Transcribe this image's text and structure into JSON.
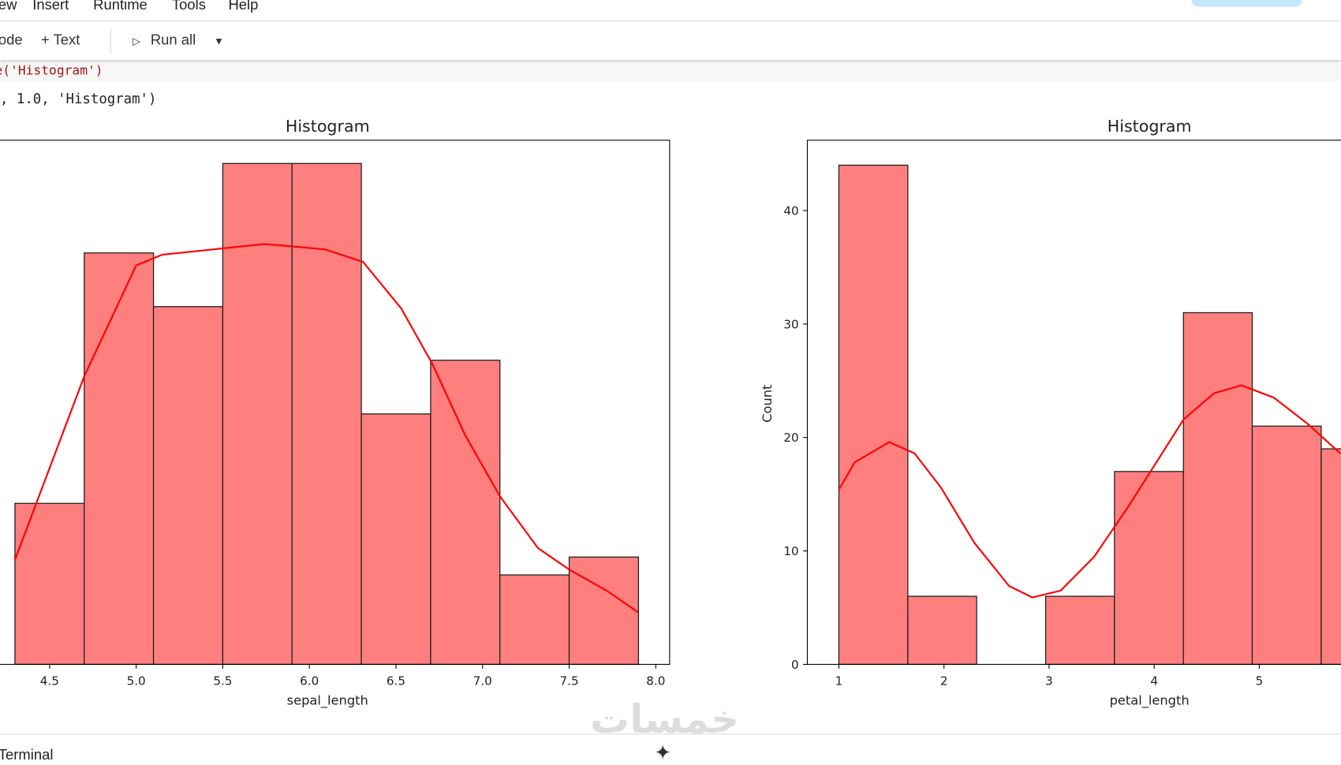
{
  "menu": {
    "items": [
      "ew",
      "Insert",
      "Runtime",
      "Tools",
      "Help"
    ]
  },
  "toolbar": {
    "code_label": "ode",
    "text_label": "+ Text",
    "run_all_label": "Run all"
  },
  "code_cell": {
    "line": "e('Histogram')"
  },
  "output": {
    "text": ", 1.0, 'Histogram')"
  },
  "footer": {
    "terminal_label": "Terminal"
  },
  "watermark": {
    "logo_text": "خمسات"
  },
  "colors": {
    "bar": "#ff7f7f",
    "kde": "#ff0000",
    "edge": "#222222"
  },
  "chart_data": [
    {
      "type": "bar",
      "title": "Histogram",
      "xlabel": "sepal_length",
      "ylabel": "",
      "xlim": [
        4.12,
        8.08
      ],
      "ylim": [
        0,
        29.3
      ],
      "xticks": [
        "4.5",
        "5.0",
        "5.5",
        "6.0",
        "6.5",
        "7.0",
        "7.5",
        "8.0"
      ],
      "yticks": [],
      "bin_edges": [
        4.3,
        4.7,
        5.1,
        5.5,
        5.9,
        6.3,
        6.7,
        7.1,
        7.5,
        7.9
      ],
      "values": [
        9,
        23,
        20,
        28,
        28,
        14,
        17,
        5,
        6
      ],
      "kde": [
        [
          4.3,
          5.84
        ],
        [
          4.7,
          16.1
        ],
        [
          5.0,
          22.3
        ],
        [
          5.15,
          22.9
        ],
        [
          5.35,
          23.1
        ],
        [
          5.74,
          23.5
        ],
        [
          6.09,
          23.2
        ],
        [
          6.31,
          22.5
        ],
        [
          6.53,
          19.9
        ],
        [
          6.71,
          16.8
        ],
        [
          6.9,
          12.8
        ],
        [
          7.1,
          9.4
        ],
        [
          7.32,
          6.5
        ],
        [
          7.5,
          5.3
        ],
        [
          7.72,
          4.1
        ],
        [
          7.9,
          2.9
        ]
      ]
    },
    {
      "type": "bar",
      "title": "Histogram",
      "xlabel": "petal_length",
      "ylabel": "Count",
      "xlim": [
        0.7,
        6.9
      ],
      "ylim": [
        0,
        46.2
      ],
      "xticks": [
        "1",
        "2",
        "3",
        "4",
        "5"
      ],
      "yticks": [
        "0",
        "10",
        "20",
        "30",
        "40"
      ],
      "bin_edges": [
        1.0,
        1.656,
        2.311,
        2.967,
        3.622,
        4.278,
        4.933,
        5.589,
        6.244
      ],
      "values": [
        44,
        6,
        0,
        6,
        17,
        31,
        21,
        19
      ],
      "kde": [
        [
          1.0,
          15.4
        ],
        [
          1.15,
          17.8
        ],
        [
          1.48,
          19.6
        ],
        [
          1.72,
          18.6
        ],
        [
          1.97,
          15.6
        ],
        [
          2.29,
          10.7
        ],
        [
          2.62,
          6.9
        ],
        [
          2.84,
          5.9
        ],
        [
          3.11,
          6.5
        ],
        [
          3.43,
          9.5
        ],
        [
          3.76,
          14.0
        ],
        [
          4.28,
          21.6
        ],
        [
          4.57,
          23.9
        ],
        [
          4.83,
          24.6
        ],
        [
          5.14,
          23.5
        ],
        [
          5.46,
          21.2
        ],
        [
          5.77,
          18.6
        ]
      ]
    }
  ]
}
